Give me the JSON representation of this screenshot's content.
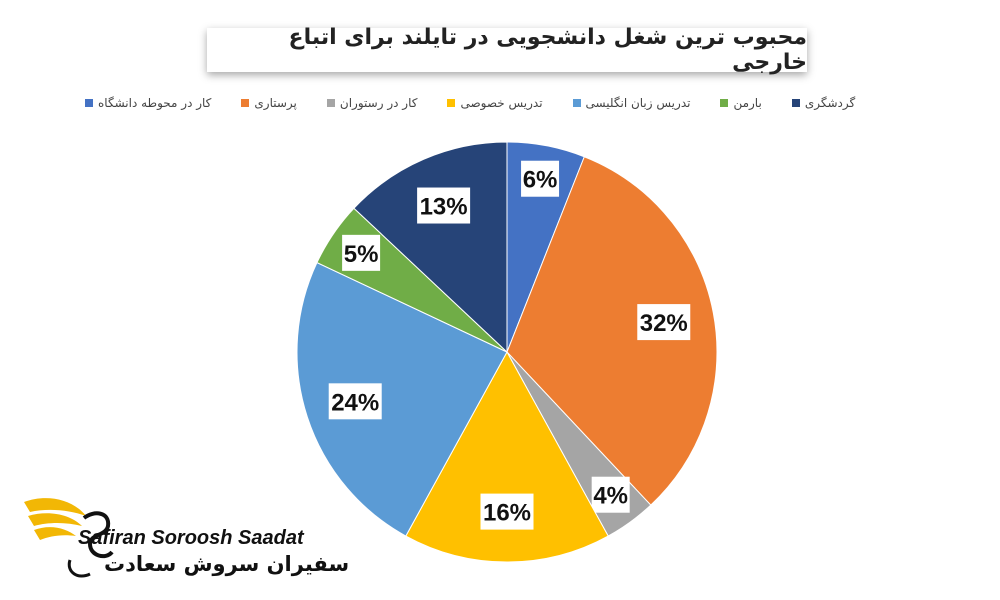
{
  "chart_data": {
    "type": "pie",
    "title": "محبوب ترین شغل دانشجویی در تایلند برای اتباع خارجی",
    "legend_position": "top",
    "slices": [
      {
        "name": "کار در محوطه دانشگاه",
        "value": 6,
        "label": "6%",
        "color": "#4472C4"
      },
      {
        "name": "پرستاری",
        "value": 32,
        "label": "32%",
        "color": "#ED7D31"
      },
      {
        "name": "کار در رستوران",
        "value": 4,
        "label": "4%",
        "color": "#A5A5A5"
      },
      {
        "name": "تدریس خصوصی",
        "value": 16,
        "label": "16%",
        "color": "#FFC000"
      },
      {
        "name": "تدریس زبان انگلیسی",
        "value": 24,
        "label": "24%",
        "color": "#5B9BD5"
      },
      {
        "name": "بارمن",
        "value": 5,
        "label": "5%",
        "color": "#70AD47"
      },
      {
        "name": "گردشگری",
        "value": 13,
        "label": "13%",
        "color": "#264478"
      }
    ]
  },
  "logo": {
    "name_en": "Safiran Soroosh Saadat",
    "name_fa": "سفیران سروش سعادت"
  }
}
